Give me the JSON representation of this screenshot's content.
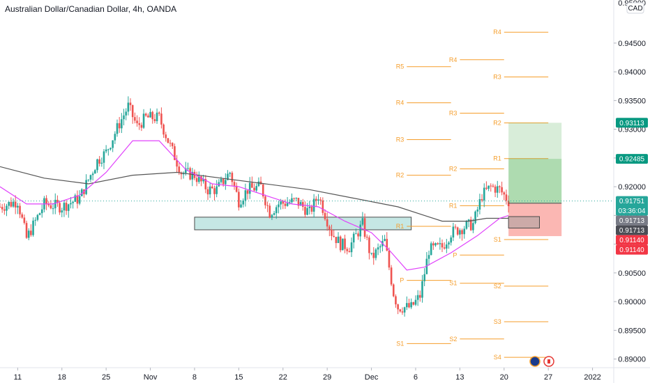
{
  "header": {
    "title": "Australian Dollar/Canadian Dollar, 4h, OANDA",
    "currency_badge": "CAD"
  },
  "chart_data": {
    "type": "candlestick",
    "symbol": "AUDCAD",
    "timeframe": "4h",
    "price_axis": {
      "ylim": [
        0.8885,
        0.9525
      ],
      "ticks": [
        {
          "value": 0.895,
          "label": "0.89500"
        },
        {
          "value": 0.9,
          "label": "0.90000"
        },
        {
          "value": 0.905,
          "label": "0.90500"
        },
        {
          "value": 0.91,
          "label": "0.91000"
        },
        {
          "value": 0.915,
          "label": "0.91500"
        },
        {
          "value": 0.92,
          "label": "0.92000"
        },
        {
          "value": 0.925,
          "label": "0.92500"
        },
        {
          "value": 0.93,
          "label": "0.93000"
        },
        {
          "value": 0.935,
          "label": "0.93500"
        },
        {
          "value": 0.94,
          "label": "0.94000"
        },
        {
          "value": 0.945,
          "label": "0.94500"
        },
        {
          "value": 0.89,
          "label": "0.89000"
        }
      ],
      "top_tick_label": "0.95000"
    },
    "time_axis": {
      "range": [
        0,
        147
      ],
      "ticks": [
        {
          "t": 4,
          "label": "11"
        },
        {
          "t": 14,
          "label": "18"
        },
        {
          "t": 24,
          "label": "25"
        },
        {
          "t": 34,
          "label": "Nov"
        },
        {
          "t": 44,
          "label": "8"
        },
        {
          "t": 54,
          "label": "15"
        },
        {
          "t": 64,
          "label": "22"
        },
        {
          "t": 74,
          "label": "29"
        },
        {
          "t": 84,
          "label": "Dec"
        },
        {
          "t": 94,
          "label": "6"
        },
        {
          "t": 104,
          "label": "13"
        },
        {
          "t": 114,
          "label": "20"
        },
        {
          "t": 124,
          "label": "27"
        },
        {
          "t": 134,
          "label": "2022"
        }
      ]
    },
    "series_path": [
      [
        0,
        0.9165
      ],
      [
        4,
        0.9175
      ],
      [
        6,
        0.911
      ],
      [
        10,
        0.917
      ],
      [
        14,
        0.9165
      ],
      [
        18,
        0.918
      ],
      [
        22,
        0.9245
      ],
      [
        24,
        0.926
      ],
      [
        27,
        0.931
      ],
      [
        29,
        0.934
      ],
      [
        31,
        0.9305
      ],
      [
        33,
        0.932
      ],
      [
        36,
        0.932
      ],
      [
        38,
        0.928
      ],
      [
        41,
        0.9225
      ],
      [
        44,
        0.922
      ],
      [
        47,
        0.9195
      ],
      [
        49,
        0.9195
      ],
      [
        52,
        0.9225
      ],
      [
        54,
        0.9175
      ],
      [
        56,
        0.9195
      ],
      [
        59,
        0.92
      ],
      [
        61,
        0.9155
      ],
      [
        63,
        0.917
      ],
      [
        67,
        0.9175
      ],
      [
        70,
        0.9155
      ],
      [
        72,
        0.9185
      ],
      [
        75,
        0.912
      ],
      [
        77,
        0.91
      ],
      [
        79,
        0.9095
      ],
      [
        82,
        0.9135
      ],
      [
        84,
        0.9075
      ],
      [
        87,
        0.9105
      ],
      [
        89,
        0.9015
      ],
      [
        90,
        0.899
      ],
      [
        93,
        0.899
      ],
      [
        95,
        0.901
      ],
      [
        97,
        0.909
      ],
      [
        100,
        0.9095
      ],
      [
        102,
        0.912
      ],
      [
        105,
        0.913
      ],
      [
        107,
        0.9135
      ],
      [
        109,
        0.9185
      ],
      [
        111,
        0.92
      ],
      [
        113,
        0.9195
      ],
      [
        115,
        0.9175
      ]
    ],
    "ma_fast_path": [
      [
        0,
        0.92
      ],
      [
        6,
        0.917
      ],
      [
        12,
        0.917
      ],
      [
        18,
        0.9185
      ],
      [
        24,
        0.9225
      ],
      [
        30,
        0.928
      ],
      [
        36,
        0.928
      ],
      [
        42,
        0.923
      ],
      [
        48,
        0.9205
      ],
      [
        54,
        0.92
      ],
      [
        60,
        0.9185
      ],
      [
        66,
        0.917
      ],
      [
        72,
        0.9165
      ],
      [
        78,
        0.914
      ],
      [
        84,
        0.912
      ],
      [
        88,
        0.909
      ],
      [
        92,
        0.9055
      ],
      [
        96,
        0.906
      ],
      [
        102,
        0.9085
      ],
      [
        108,
        0.9115
      ],
      [
        113,
        0.9145
      ],
      [
        115,
        0.915
      ]
    ],
    "ma_slow_path": [
      [
        0,
        0.9235
      ],
      [
        10,
        0.9215
      ],
      [
        20,
        0.9205
      ],
      [
        30,
        0.922
      ],
      [
        40,
        0.9225
      ],
      [
        50,
        0.9215
      ],
      [
        60,
        0.9205
      ],
      [
        70,
        0.9195
      ],
      [
        80,
        0.918
      ],
      [
        90,
        0.9165
      ],
      [
        96,
        0.915
      ],
      [
        100,
        0.914
      ],
      [
        106,
        0.914
      ],
      [
        110,
        0.9145
      ],
      [
        115,
        0.9145
      ]
    ],
    "demand_zone": {
      "t0": 44,
      "t1": 93,
      "low": 0.9125,
      "high": 0.9147
    },
    "position": {
      "t0": 115,
      "t1": 127,
      "entry": 0.91713,
      "stop": 0.9114,
      "target1": 0.92485,
      "target2": 0.93113,
      "inner_box": {
        "t0": 115,
        "t1": 122,
        "low": 0.9128,
        "high": 0.9148
      },
      "profit_color": "#4caf50",
      "loss_color": "#f44336"
    },
    "pivot_sets": [
      {
        "t0": 92,
        "t1": 102,
        "levels": [
          {
            "name": "R5",
            "value": 0.9409
          },
          {
            "name": "R4",
            "value": 0.9346
          },
          {
            "name": "R3",
            "value": 0.9282
          },
          {
            "name": "R2",
            "value": 0.922
          },
          {
            "name": "R1",
            "value": 0.9131
          },
          {
            "name": "P",
            "value": 0.9037
          },
          {
            "name": "S1",
            "value": 0.8927
          }
        ]
      },
      {
        "t0": 104,
        "t1": 114,
        "levels": [
          {
            "name": "R4",
            "value": 0.9421
          },
          {
            "name": "R3",
            "value": 0.9328
          },
          {
            "name": "R2",
            "value": 0.9231
          },
          {
            "name": "R1",
            "value": 0.9167
          },
          {
            "name": "P",
            "value": 0.9081
          },
          {
            "name": "S1",
            "value": 0.9032
          },
          {
            "name": "S2",
            "value": 0.8935
          }
        ]
      },
      {
        "t0": 114,
        "t1": 124,
        "levels": [
          {
            "name": "R4",
            "value": 0.9469
          },
          {
            "name": "R3",
            "value": 0.9391
          },
          {
            "name": "R2",
            "value": 0.9311
          },
          {
            "name": "R1",
            "value": 0.9249
          },
          {
            "name": "S1",
            "value": 0.9108
          },
          {
            "name": "S2",
            "value": 0.9027
          },
          {
            "name": "S3",
            "value": 0.8965
          },
          {
            "name": "S4",
            "value": 0.8903
          }
        ]
      }
    ],
    "price_badges": [
      {
        "value": 0.93113,
        "label": "0.93113",
        "color": "#089981"
      },
      {
        "value": 0.92485,
        "label": "0.92485",
        "color": "#089981"
      },
      {
        "value": 0.91751,
        "label": "0.91751",
        "color": "#26a69a",
        "sub_label": "03:36:04"
      },
      {
        "value": 0.91713,
        "label": "0.91713",
        "color": "#787b86"
      },
      {
        "value": 0.91713,
        "label": "0.91713",
        "color": "#4b4d55"
      },
      {
        "value": 0.9114,
        "label": "0.91140",
        "color": "#f23645"
      },
      {
        "value": 0.9114,
        "label": "0.91140",
        "color": "#f23645"
      }
    ],
    "current_price": 0.91751,
    "colors": {
      "up": "#26a69a",
      "down": "#ef5350",
      "ma_fast": "#e040fb",
      "ma_slow": "#555555",
      "pivot": "#f59d2a",
      "zone_fill": "#b2dfdb",
      "zone_stroke": "#4a4a4a"
    }
  }
}
